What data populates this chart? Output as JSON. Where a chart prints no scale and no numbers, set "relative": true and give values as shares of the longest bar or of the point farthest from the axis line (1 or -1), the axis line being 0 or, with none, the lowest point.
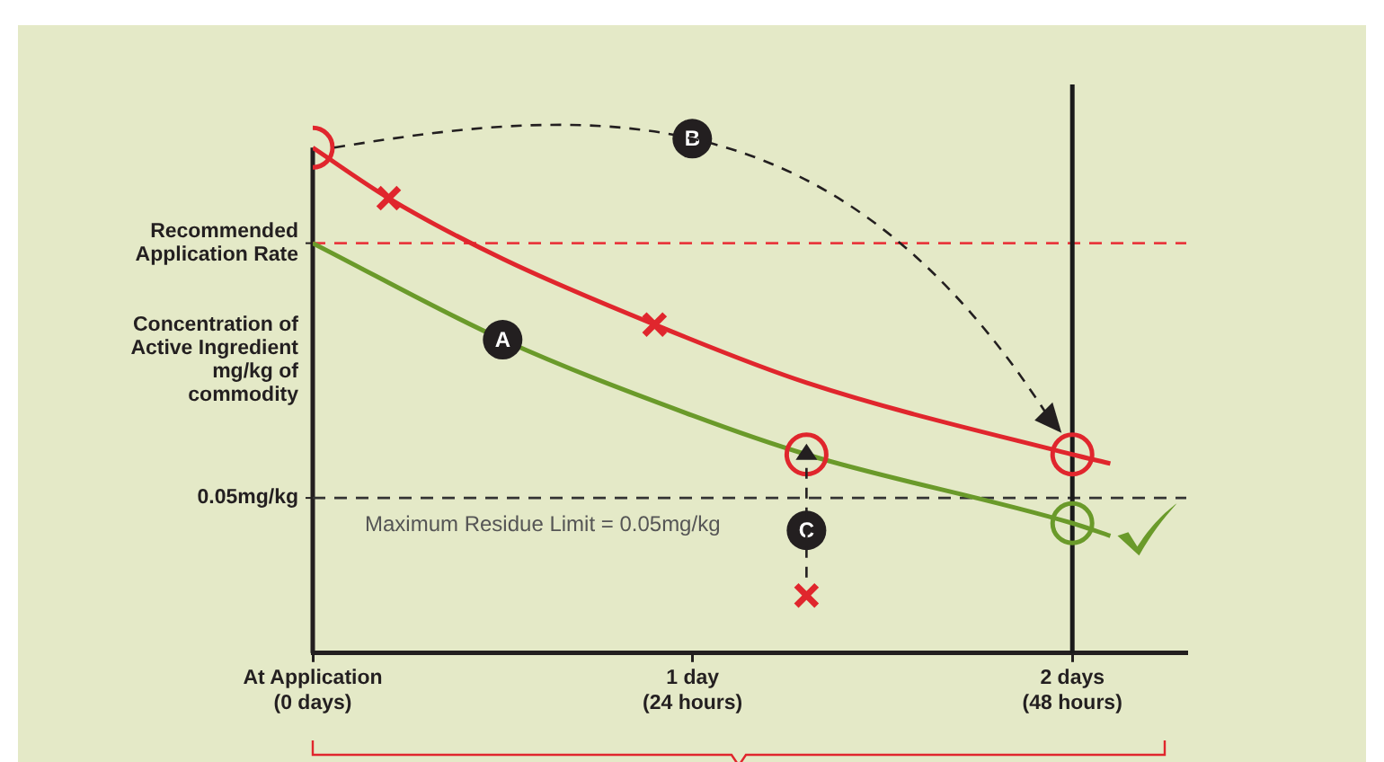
{
  "chart_data": {
    "type": "line",
    "relative": true,
    "ylabel": "Concentration of Active Ingredient mg/kg of commodity",
    "categories": [
      "At Application\n(0 days)",
      null,
      null,
      null,
      null,
      null,
      null,
      null,
      null,
      null,
      "1 day\n(24 hours)",
      null,
      null,
      null,
      null,
      null,
      null,
      null,
      null,
      null,
      "2 days\n(48 hours)",
      null,
      null,
      null
    ],
    "grid": false,
    "legend": false,
    "line_style": "solid",
    "series": [
      {
        "type": "line",
        "marker": "none",
        "color": "#e0262d",
        "values": [
          1,
          null,
          0.9,
          null,
          null,
          0.78,
          null,
          null,
          null,
          0.65,
          null,
          null,
          null,
          0.535,
          null,
          null,
          null,
          null,
          null,
          null,
          0.393,
          0.375,
          null,
          null
        ]
      },
      {
        "type": "line",
        "marker": "none",
        "color": "#6a9a2a",
        "values": [
          0.811,
          null,
          null,
          null,
          null,
          0.62,
          null,
          null,
          null,
          null,
          0.47,
          null,
          null,
          0.393,
          null,
          null,
          null,
          null,
          null,
          null,
          0.257,
          0.232,
          null,
          null
        ]
      },
      {
        "type": "scatter",
        "marker": "circle",
        "color": "#e0262d",
        "values": [
          1,
          null,
          null,
          null,
          null,
          null,
          null,
          null,
          null,
          null,
          null,
          null,
          null,
          0.393,
          null,
          null,
          null,
          null,
          null,
          null,
          0.393,
          null,
          null,
          null
        ]
      },
      {
        "type": "scatter",
        "marker": "cross",
        "color": "#e0262d",
        "values": [
          null,
          null,
          0.9,
          null,
          null,
          null,
          null,
          null,
          null,
          0.65,
          null,
          null,
          null,
          0.114,
          null,
          null,
          null,
          null,
          null,
          null,
          null,
          null,
          null,
          null
        ]
      },
      {
        "type": "scatter",
        "marker": "circle",
        "color": "#6a9a2a",
        "values": [
          null,
          null,
          null,
          null,
          null,
          null,
          null,
          null,
          null,
          null,
          null,
          null,
          null,
          null,
          null,
          null,
          null,
          null,
          null,
          null,
          0.257,
          null,
          null,
          null
        ]
      }
    ],
    "ref_lines": [
      {
        "axis": "y",
        "value": 0.811,
        "label": "Recommended Application Rate",
        "color": "#e8383d",
        "line_style": "dashed"
      },
      {
        "axis": "y",
        "value": 0.307,
        "label": "0.05mg/kg",
        "color": "#333333",
        "line_style": "dashed"
      },
      {
        "axis": "x",
        "value": "2 days\n(48 hours)",
        "color": "#1a1a1a",
        "line_style": "solid"
      }
    ],
    "annotations": [
      "Maximum Residue Limit = 0.05mg/kg",
      "A",
      "B",
      "C"
    ]
  }
}
